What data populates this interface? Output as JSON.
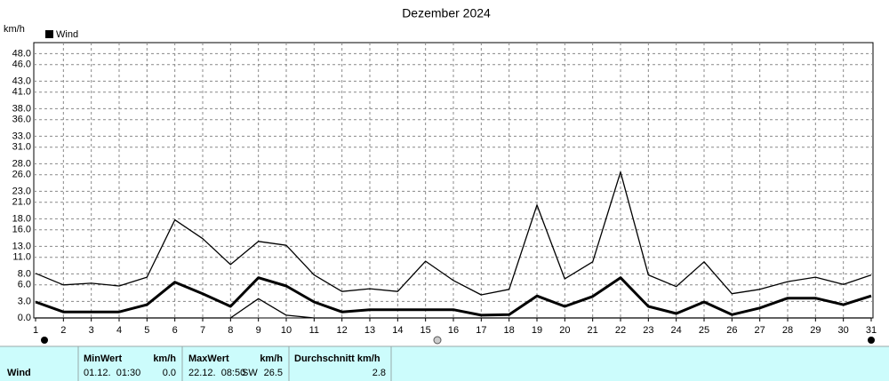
{
  "chart_data": {
    "type": "line",
    "title": "Dezember 2024",
    "unit": "km/h",
    "categories": [
      "1",
      "2",
      "3",
      "4",
      "5",
      "6",
      "7",
      "8",
      "9",
      "10",
      "11",
      "12",
      "13",
      "14",
      "15",
      "16",
      "17",
      "18",
      "19",
      "20",
      "21",
      "22",
      "23",
      "24",
      "25",
      "26",
      "27",
      "28",
      "29",
      "30",
      "31"
    ],
    "series": [
      {
        "name": "Wind",
        "color": "#000000",
        "width": 3,
        "values": [
          2.9,
          1.1,
          1.1,
          1.1,
          2.4,
          6.5,
          4.4,
          2.1,
          7.3,
          5.8,
          2.9,
          1.1,
          1.5,
          1.5,
          1.5,
          1.5,
          0.5,
          0.6,
          4.0,
          2.1,
          3.9,
          7.3,
          2.1,
          0.8,
          2.9,
          0.6,
          1.8,
          3.6,
          3.6,
          2.4,
          4.0
        ]
      },
      {
        "color": "#000000",
        "width": 1.3,
        "values": [
          8.1,
          6.0,
          6.3,
          5.8,
          7.4,
          17.8,
          14.4,
          9.7,
          13.9,
          13.2,
          7.8,
          4.8,
          5.3,
          4.8,
          10.3,
          6.8,
          4.2,
          5.2,
          20.5,
          7.1,
          10.2,
          26.5,
          7.8,
          5.7,
          10.2,
          4.4,
          5.2,
          6.6,
          7.4,
          6.1,
          7.8
        ]
      },
      {
        "color": "#000000",
        "width": 1.3,
        "values": [
          0,
          0,
          0,
          0,
          0,
          0,
          0,
          0,
          3.5,
          0.5,
          0,
          0,
          0,
          0,
          0,
          0,
          0,
          0,
          0,
          0,
          0,
          0,
          0,
          0,
          0,
          0,
          0,
          0,
          0,
          0,
          0
        ]
      }
    ],
    "ylim": [
      0,
      50
    ],
    "yticks": [
      {
        "value": 0,
        "label": "0.0"
      },
      {
        "value": 3,
        "label": "3.0"
      },
      {
        "value": 6,
        "label": "6.0"
      },
      {
        "value": 8,
        "label": "8.0"
      },
      {
        "value": 11,
        "label": "11.0"
      },
      {
        "value": 13,
        "label": "13.0"
      },
      {
        "value": 16,
        "label": "16.0"
      },
      {
        "value": 18,
        "label": "18.0"
      },
      {
        "value": 21,
        "label": "21.0"
      },
      {
        "value": 23,
        "label": "23.0"
      },
      {
        "value": 26,
        "label": "26.0"
      },
      {
        "value": 28,
        "label": "28.0"
      },
      {
        "value": 31,
        "label": "31.0"
      },
      {
        "value": 33,
        "label": "33.0"
      },
      {
        "value": 36,
        "label": "36.0"
      },
      {
        "value": 38,
        "label": "38.0"
      },
      {
        "value": 41,
        "label": "41.0"
      },
      {
        "value": 43,
        "label": "43.0"
      },
      {
        "value": 46,
        "label": "46.0"
      },
      {
        "value": 48,
        "label": "48.0"
      }
    ],
    "grid": true
  },
  "stats": {
    "row": "Wind",
    "min": {
      "header": "MinWert",
      "unit": "km/h",
      "time": "01.12.  01:30",
      "value": "0.0"
    },
    "max": {
      "header": "MaxWert",
      "unit": "km/h",
      "time": "22.12.  08:50",
      "dir": "SW",
      "value": "26.5"
    },
    "avg": {
      "header": "Durchschnitt km/h",
      "value": "2.8"
    }
  }
}
